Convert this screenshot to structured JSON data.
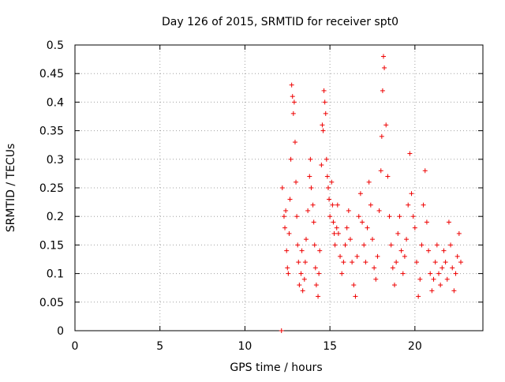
{
  "chart_data": {
    "type": "scatter",
    "title": "Day 126 of 2015, SRMTID for receiver spt0",
    "xlabel": "GPS time / hours",
    "ylabel": "SRMTID / TECUs",
    "xlim": [
      0,
      24
    ],
    "ylim": [
      0,
      0.5
    ],
    "xticks": [
      0,
      5,
      10,
      15,
      20
    ],
    "yticks": [
      0,
      0.05,
      0.1,
      0.15,
      0.2,
      0.25,
      0.3,
      0.35,
      0.4,
      0.45,
      0.5
    ],
    "ytick_labels": [
      "0",
      "0.05",
      "0.1",
      "0.15",
      "0.2",
      "0.25",
      "0.3",
      "0.35",
      "0.4",
      "0.45",
      "0.5"
    ],
    "grid": true,
    "marker": "+",
    "color": "#ee0000",
    "series": [
      {
        "values": [
          [
            12.15,
            0.0
          ],
          [
            12.2,
            0.25
          ],
          [
            12.3,
            0.2
          ],
          [
            12.35,
            0.18
          ],
          [
            12.4,
            0.21
          ],
          [
            12.45,
            0.14
          ],
          [
            12.5,
            0.11
          ],
          [
            12.55,
            0.1
          ],
          [
            12.6,
            0.17
          ],
          [
            12.65,
            0.23
          ],
          [
            12.7,
            0.3
          ],
          [
            12.75,
            0.43
          ],
          [
            12.8,
            0.41
          ],
          [
            12.85,
            0.38
          ],
          [
            12.9,
            0.4
          ],
          [
            12.95,
            0.33
          ],
          [
            13.0,
            0.26
          ],
          [
            13.05,
            0.2
          ],
          [
            13.1,
            0.15
          ],
          [
            13.15,
            0.12
          ],
          [
            13.2,
            0.08
          ],
          [
            13.3,
            0.1
          ],
          [
            13.35,
            0.14
          ],
          [
            13.4,
            0.07
          ],
          [
            13.5,
            0.09
          ],
          [
            13.55,
            0.12
          ],
          [
            13.6,
            0.16
          ],
          [
            13.7,
            0.21
          ],
          [
            13.8,
            0.27
          ],
          [
            13.85,
            0.3
          ],
          [
            13.9,
            0.25
          ],
          [
            14.0,
            0.22
          ],
          [
            14.05,
            0.19
          ],
          [
            14.1,
            0.15
          ],
          [
            14.15,
            0.11
          ],
          [
            14.2,
            0.08
          ],
          [
            14.3,
            0.06
          ],
          [
            14.35,
            0.1
          ],
          [
            14.4,
            0.14
          ],
          [
            14.5,
            0.29
          ],
          [
            14.55,
            0.36
          ],
          [
            14.6,
            0.35
          ],
          [
            14.65,
            0.42
          ],
          [
            14.7,
            0.4
          ],
          [
            14.75,
            0.38
          ],
          [
            14.8,
            0.3
          ],
          [
            14.85,
            0.27
          ],
          [
            14.9,
            0.25
          ],
          [
            14.95,
            0.23
          ],
          [
            15.0,
            0.2
          ],
          [
            15.1,
            0.26
          ],
          [
            15.15,
            0.22
          ],
          [
            15.2,
            0.19
          ],
          [
            15.25,
            0.17
          ],
          [
            15.3,
            0.15
          ],
          [
            15.4,
            0.18
          ],
          [
            15.45,
            0.22
          ],
          [
            15.5,
            0.17
          ],
          [
            15.6,
            0.13
          ],
          [
            15.7,
            0.1
          ],
          [
            15.8,
            0.12
          ],
          [
            15.9,
            0.15
          ],
          [
            16.0,
            0.18
          ],
          [
            16.1,
            0.21
          ],
          [
            16.2,
            0.16
          ],
          [
            16.3,
            0.12
          ],
          [
            16.4,
            0.08
          ],
          [
            16.5,
            0.06
          ],
          [
            16.6,
            0.13
          ],
          [
            16.7,
            0.2
          ],
          [
            16.8,
            0.24
          ],
          [
            16.9,
            0.19
          ],
          [
            17.0,
            0.15
          ],
          [
            17.1,
            0.12
          ],
          [
            17.2,
            0.18
          ],
          [
            17.3,
            0.26
          ],
          [
            17.4,
            0.22
          ],
          [
            17.5,
            0.16
          ],
          [
            17.6,
            0.11
          ],
          [
            17.7,
            0.09
          ],
          [
            17.8,
            0.13
          ],
          [
            17.9,
            0.21
          ],
          [
            18.0,
            0.28
          ],
          [
            18.05,
            0.34
          ],
          [
            18.1,
            0.42
          ],
          [
            18.15,
            0.48
          ],
          [
            18.2,
            0.46
          ],
          [
            18.3,
            0.36
          ],
          [
            18.4,
            0.27
          ],
          [
            18.5,
            0.2
          ],
          [
            18.6,
            0.15
          ],
          [
            18.7,
            0.11
          ],
          [
            18.8,
            0.08
          ],
          [
            18.9,
            0.12
          ],
          [
            19.0,
            0.17
          ],
          [
            19.1,
            0.2
          ],
          [
            19.2,
            0.14
          ],
          [
            19.3,
            0.1
          ],
          [
            19.4,
            0.13
          ],
          [
            19.5,
            0.16
          ],
          [
            19.6,
            0.22
          ],
          [
            19.7,
            0.31
          ],
          [
            19.8,
            0.24
          ],
          [
            19.9,
            0.2
          ],
          [
            20.0,
            0.18
          ],
          [
            20.1,
            0.12
          ],
          [
            20.2,
            0.06
          ],
          [
            20.3,
            0.09
          ],
          [
            20.4,
            0.15
          ],
          [
            20.5,
            0.22
          ],
          [
            20.6,
            0.28
          ],
          [
            20.7,
            0.19
          ],
          [
            20.8,
            0.14
          ],
          [
            20.9,
            0.1
          ],
          [
            21.0,
            0.07
          ],
          [
            21.1,
            0.09
          ],
          [
            21.2,
            0.12
          ],
          [
            21.3,
            0.15
          ],
          [
            21.4,
            0.1
          ],
          [
            21.5,
            0.08
          ],
          [
            21.6,
            0.11
          ],
          [
            21.7,
            0.14
          ],
          [
            21.8,
            0.12
          ],
          [
            21.9,
            0.09
          ],
          [
            22.0,
            0.19
          ],
          [
            22.1,
            0.15
          ],
          [
            22.2,
            0.11
          ],
          [
            22.3,
            0.07
          ],
          [
            22.4,
            0.1
          ],
          [
            22.5,
            0.13
          ],
          [
            22.6,
            0.17
          ],
          [
            22.7,
            0.12
          ]
        ]
      }
    ]
  }
}
